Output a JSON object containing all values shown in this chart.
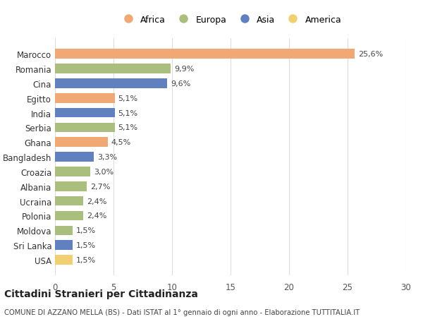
{
  "countries": [
    "Marocco",
    "Romania",
    "Cina",
    "Egitto",
    "India",
    "Serbia",
    "Ghana",
    "Bangladesh",
    "Croazia",
    "Albania",
    "Ucraina",
    "Polonia",
    "Moldova",
    "Sri Lanka",
    "USA"
  ],
  "values": [
    25.6,
    9.9,
    9.6,
    5.1,
    5.1,
    5.1,
    4.5,
    3.3,
    3.0,
    2.7,
    2.4,
    2.4,
    1.5,
    1.5,
    1.5
  ],
  "labels": [
    "25,6%",
    "9,9%",
    "9,6%",
    "5,1%",
    "5,1%",
    "5,1%",
    "4,5%",
    "3,3%",
    "3,0%",
    "2,7%",
    "2,4%",
    "2,4%",
    "1,5%",
    "1,5%",
    "1,5%"
  ],
  "continents": [
    "Africa",
    "Europa",
    "Asia",
    "Africa",
    "Asia",
    "Europa",
    "Africa",
    "Asia",
    "Europa",
    "Europa",
    "Europa",
    "Europa",
    "Europa",
    "Asia",
    "America"
  ],
  "colors": {
    "Africa": "#F0A875",
    "Europa": "#AABF7E",
    "Asia": "#6080C0",
    "America": "#F0D070"
  },
  "legend_order": [
    "Africa",
    "Europa",
    "Asia",
    "America"
  ],
  "bg_color": "#FFFFFF",
  "grid_color": "#DDDDDD",
  "title": "Cittadini Stranieri per Cittadinanza",
  "subtitle": "COMUNE DI AZZANO MELLA (BS) - Dati ISTAT al 1° gennaio di ogni anno - Elaborazione TUTTITALIA.IT",
  "xlim": [
    0,
    30
  ],
  "xticks": [
    0,
    5,
    10,
    15,
    20,
    25,
    30
  ]
}
